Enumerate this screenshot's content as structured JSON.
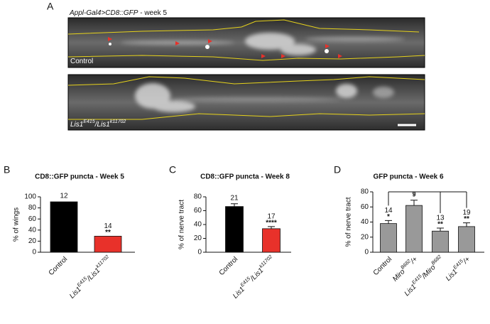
{
  "panel_a": {
    "letter": "A",
    "caption": {
      "parts": [
        {
          "text": "Appl-Gal4>CD8::GFP",
          "italic": true
        },
        {
          "text": " - week 5"
        }
      ]
    },
    "images": [
      {
        "label": {
          "parts": [
            {
              "text": "Control"
            }
          ]
        }
      },
      {
        "label": {
          "parts": [
            {
              "text": "Lis1",
              "italic": true
            },
            {
              "sup": "E415",
              "italic": true
            },
            {
              "text": "/Lis1",
              "italic": true
            },
            {
              "sup": "k11702",
              "italic": true
            }
          ]
        }
      }
    ]
  },
  "chart_data": [
    {
      "type": "bar",
      "panel_label": "B",
      "title": "CD8::GFP puncta - Week 5",
      "y_label": "% of wings",
      "categories": [
        {
          "parts": [
            {
              "text": "Control"
            }
          ]
        },
        {
          "parts": [
            {
              "text": "Lis1",
              "italic": true
            },
            {
              "sup": "E415",
              "italic": true
            },
            {
              "text": "/Lis1",
              "italic": true
            },
            {
              "sup": "k11702",
              "italic": true
            }
          ]
        }
      ],
      "values": [
        91,
        29
      ],
      "colors": [
        "#000000",
        "#e8312a"
      ],
      "n_labels": [
        12,
        14
      ],
      "significance": [
        null,
        "**"
      ],
      "ylim": [
        0,
        100
      ],
      "yticks": [
        0,
        20,
        40,
        60,
        80,
        100
      ]
    },
    {
      "type": "bar",
      "panel_label": "C",
      "title": "CD8::GFP puncta - Week 8",
      "y_label": "% of nerve tract",
      "categories": [
        {
          "parts": [
            {
              "text": "Control"
            }
          ]
        },
        {
          "parts": [
            {
              "text": "Lis1",
              "italic": true
            },
            {
              "sup": "E415",
              "italic": true
            },
            {
              "text": "/Lis1",
              "italic": true
            },
            {
              "sup": "k11702",
              "italic": true
            }
          ]
        }
      ],
      "values": [
        66,
        34
      ],
      "errors": [
        4,
        3
      ],
      "colors": [
        "#000000",
        "#e8312a"
      ],
      "n_labels": [
        21,
        17
      ],
      "significance": [
        null,
        "****"
      ],
      "ylim": [
        0,
        80
      ],
      "yticks": [
        0,
        20,
        40,
        60,
        80
      ]
    },
    {
      "type": "bar",
      "panel_label": "D",
      "title": "GFP puncta - Week 6",
      "y_label": "% of nerve tract",
      "categories": [
        {
          "parts": [
            {
              "text": "Control"
            }
          ]
        },
        {
          "parts": [
            {
              "text": "Miro",
              "italic": true
            },
            {
              "sup": "B682",
              "italic": true
            },
            {
              "text": "/+",
              "italic": true
            }
          ]
        },
        {
          "parts": [
            {
              "text": "Lis1",
              "italic": true
            },
            {
              "sup": "E415",
              "italic": true
            },
            {
              "text": "/Miro",
              "italic": true
            },
            {
              "sup": "B682",
              "italic": true
            }
          ]
        },
        {
          "parts": [
            {
              "text": "Lis1",
              "italic": true
            },
            {
              "sup": "E415",
              "italic": true
            },
            {
              "text": "/+",
              "italic": true
            }
          ]
        }
      ],
      "values": [
        38,
        62,
        28,
        34
      ],
      "errors": [
        4,
        7,
        4,
        5
      ],
      "colors": [
        "#999999",
        "#999999",
        "#999999",
        "#999999"
      ],
      "n_labels": [
        14,
        9,
        13,
        19
      ],
      "significance": [
        "*",
        null,
        "**",
        "**"
      ],
      "ylim": [
        0,
        80
      ],
      "yticks": [
        0,
        20,
        40,
        60,
        80
      ]
    }
  ]
}
